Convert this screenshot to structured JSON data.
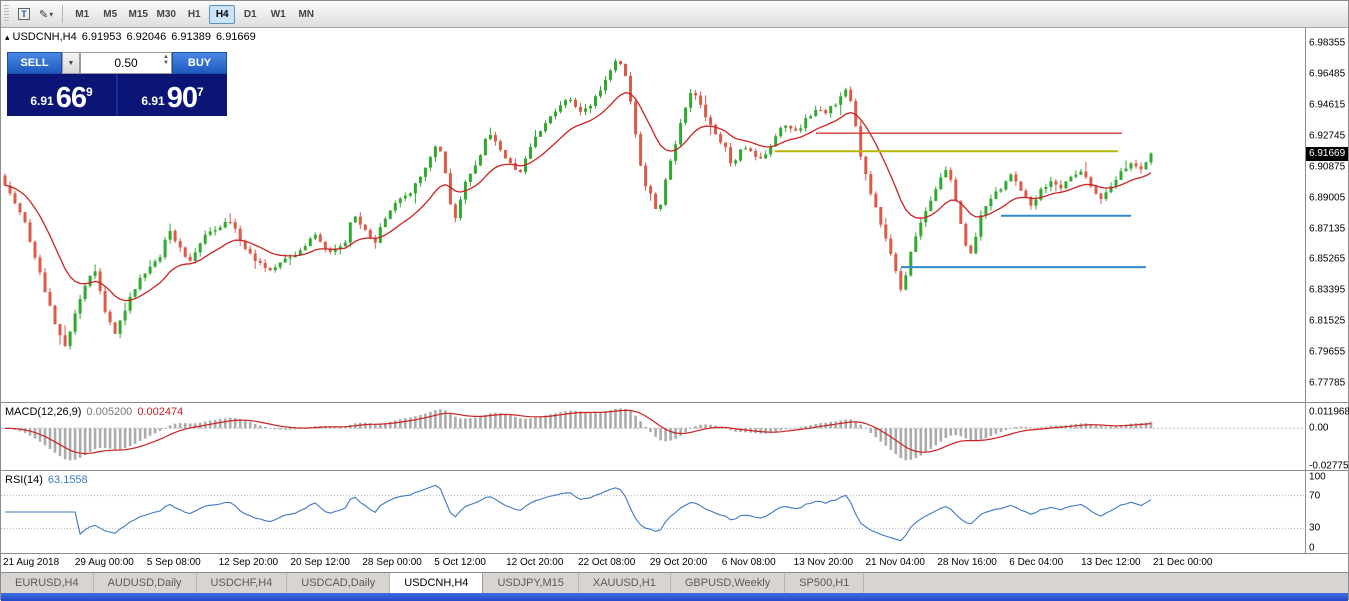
{
  "toolbar": {
    "window_glyph": "T",
    "tools_glyph": "✎",
    "dropdown_glyph": "▾",
    "timeframes": [
      {
        "label": "M1",
        "active": false
      },
      {
        "label": "M5",
        "active": false
      },
      {
        "label": "M15",
        "active": false
      },
      {
        "label": "M30",
        "active": false
      },
      {
        "label": "H1",
        "active": false
      },
      {
        "label": "H4",
        "active": true
      },
      {
        "label": "D1",
        "active": false
      },
      {
        "label": "W1",
        "active": false
      },
      {
        "label": "MN",
        "active": false
      }
    ]
  },
  "chart": {
    "header": {
      "marker": "▴",
      "symbol": "USDCNH,H4",
      "open": "6.91953",
      "high": "6.92046",
      "low": "6.91389",
      "close": "6.91669"
    },
    "current_price": "6.91669",
    "price_scale": [
      "6.98355",
      "6.96485",
      "6.94615",
      "6.92745",
      "6.90875",
      "6.89005",
      "6.87135",
      "6.85265",
      "6.83395",
      "6.81525",
      "6.79655",
      "6.77785"
    ]
  },
  "trade_panel": {
    "sell_label": "SELL",
    "buy_label": "BUY",
    "volume": "0.50",
    "drop_glyph": "▼",
    "spin_up": "▲",
    "spin_down": "▼",
    "sell_price": {
      "small": "6.91",
      "big": "66",
      "sup": "9"
    },
    "buy_price": {
      "small": "6.91",
      "big": "90",
      "sup": "7"
    }
  },
  "macd_panel": {
    "label": "MACD(12,26,9)",
    "value1": "0.005200",
    "value2": "0.002474",
    "scale": [
      "0.011968",
      "0.00",
      "-0.02775"
    ]
  },
  "rsi_panel": {
    "label": "RSI(14)",
    "value": "63.1558",
    "scale": [
      "100",
      "70",
      "30",
      "0"
    ]
  },
  "time_axis": [
    "21 Aug 2018",
    "29 Aug 00:00",
    "5 Sep 08:00",
    "12 Sep 20:00",
    "20 Sep 12:00",
    "28 Sep 00:00",
    "5 Oct 12:00",
    "12 Oct 20:00",
    "22 Oct 08:00",
    "29 Oct 20:00",
    "6 Nov 08:00",
    "13 Nov 20:00",
    "21 Nov 04:00",
    "28 Nov 16:00",
    "6 Dec 04:00",
    "13 Dec 12:00",
    "21 Dec 00:00"
  ],
  "tabs": [
    {
      "label": "EURUSD,H4",
      "active": false
    },
    {
      "label": "AUDUSD,Daily",
      "active": false
    },
    {
      "label": "USDCHF,H4",
      "active": false
    },
    {
      "label": "USDCAD,Daily",
      "active": false
    },
    {
      "label": "USDCNH,H4",
      "active": true
    },
    {
      "label": "USDJPY,M15",
      "active": false
    },
    {
      "label": "XAUUSD,H1",
      "active": false
    },
    {
      "label": "GBPUSD,Weekly",
      "active": false
    },
    {
      "label": "SP500,H1",
      "active": false
    }
  ],
  "chart_data": {
    "type": "candlestick",
    "symbol": "USDCNH",
    "timeframe": "H4",
    "title": "USDCNH,H4",
    "visible_range": {
      "start": "21 Aug 2018",
      "end": "21 Dec 2018"
    },
    "last_ohlc": {
      "open": 6.91953,
      "high": 6.92046,
      "low": 6.91389,
      "close": 6.91669
    },
    "y_axis": {
      "min": 6.7664,
      "max": 6.9926,
      "ticks": [
        6.98355,
        6.96485,
        6.94615,
        6.92745,
        6.90875,
        6.89005,
        6.87135,
        6.85265,
        6.83395,
        6.81525,
        6.79655,
        6.77785
      ]
    },
    "candle_count": 230,
    "up_color": "#2faa2f",
    "down_color": "#dd5a49",
    "last_close": 6.91669,
    "price_path": [
      [
        0.0,
        6.898
      ],
      [
        0.017,
        6.875
      ],
      [
        0.03,
        6.845
      ],
      [
        0.043,
        6.815
      ],
      [
        0.052,
        6.798
      ],
      [
        0.061,
        6.82
      ],
      [
        0.07,
        6.838
      ],
      [
        0.078,
        6.848
      ],
      [
        0.087,
        6.822
      ],
      [
        0.096,
        6.808
      ],
      [
        0.109,
        6.83
      ],
      [
        0.122,
        6.845
      ],
      [
        0.135,
        6.853
      ],
      [
        0.143,
        6.872
      ],
      [
        0.152,
        6.86
      ],
      [
        0.161,
        6.85
      ],
      [
        0.174,
        6.866
      ],
      [
        0.187,
        6.872
      ],
      [
        0.196,
        6.876
      ],
      [
        0.209,
        6.86
      ],
      [
        0.222,
        6.85
      ],
      [
        0.23,
        6.846
      ],
      [
        0.243,
        6.852
      ],
      [
        0.257,
        6.858
      ],
      [
        0.27,
        6.868
      ],
      [
        0.283,
        6.856
      ],
      [
        0.296,
        6.862
      ],
      [
        0.304,
        6.88
      ],
      [
        0.313,
        6.872
      ],
      [
        0.322,
        6.862
      ],
      [
        0.33,
        6.876
      ],
      [
        0.339,
        6.886
      ],
      [
        0.352,
        6.892
      ],
      [
        0.365,
        6.906
      ],
      [
        0.378,
        6.924
      ],
      [
        0.387,
        6.896
      ],
      [
        0.391,
        6.874
      ],
      [
        0.4,
        6.896
      ],
      [
        0.413,
        6.913
      ],
      [
        0.422,
        6.93
      ],
      [
        0.43,
        6.922
      ],
      [
        0.439,
        6.912
      ],
      [
        0.448,
        6.903
      ],
      [
        0.457,
        6.92
      ],
      [
        0.47,
        6.934
      ],
      [
        0.483,
        6.944
      ],
      [
        0.491,
        6.95
      ],
      [
        0.503,
        6.94
      ],
      [
        0.513,
        6.948
      ],
      [
        0.522,
        6.958
      ],
      [
        0.53,
        6.97
      ],
      [
        0.535,
        6.974
      ],
      [
        0.543,
        6.96
      ],
      [
        0.55,
        6.93
      ],
      [
        0.557,
        6.9
      ],
      [
        0.565,
        6.89
      ],
      [
        0.57,
        6.878
      ],
      [
        0.578,
        6.905
      ],
      [
        0.587,
        6.928
      ],
      [
        0.596,
        6.95
      ],
      [
        0.6,
        6.955
      ],
      [
        0.609,
        6.942
      ],
      [
        0.617,
        6.932
      ],
      [
        0.629,
        6.92
      ],
      [
        0.635,
        6.908
      ],
      [
        0.643,
        6.922
      ],
      [
        0.652,
        6.917
      ],
      [
        0.661,
        6.912
      ],
      [
        0.67,
        6.925
      ],
      [
        0.678,
        6.934
      ],
      [
        0.691,
        6.93
      ],
      [
        0.7,
        6.938
      ],
      [
        0.709,
        6.945
      ],
      [
        0.717,
        6.942
      ],
      [
        0.726,
        6.948
      ],
      [
        0.733,
        6.957
      ],
      [
        0.739,
        6.948
      ],
      [
        0.745,
        6.92
      ],
      [
        0.753,
        6.898
      ],
      [
        0.761,
        6.882
      ],
      [
        0.77,
        6.862
      ],
      [
        0.778,
        6.843
      ],
      [
        0.783,
        6.832
      ],
      [
        0.791,
        6.858
      ],
      [
        0.8,
        6.878
      ],
      [
        0.809,
        6.89
      ],
      [
        0.816,
        6.902
      ],
      [
        0.822,
        6.908
      ],
      [
        0.83,
        6.888
      ],
      [
        0.839,
        6.86
      ],
      [
        0.843,
        6.856
      ],
      [
        0.852,
        6.88
      ],
      [
        0.861,
        6.89
      ],
      [
        0.87,
        6.896
      ],
      [
        0.878,
        6.905
      ],
      [
        0.887,
        6.893
      ],
      [
        0.896,
        6.885
      ],
      [
        0.904,
        6.895
      ],
      [
        0.913,
        6.9
      ],
      [
        0.922,
        6.896
      ],
      [
        0.93,
        6.902
      ],
      [
        0.939,
        6.906
      ],
      [
        0.948,
        6.896
      ],
      [
        0.957,
        6.89
      ],
      [
        0.965,
        6.898
      ],
      [
        0.974,
        6.905
      ],
      [
        0.983,
        6.912
      ],
      [
        0.991,
        6.908
      ],
      [
        1.0,
        6.91669
      ]
    ],
    "ma": {
      "type": "ema",
      "period": 15,
      "color": "#cc2222"
    },
    "hlines": [
      {
        "price": 6.929,
        "x1": 0.624,
        "x2": 0.858,
        "color": "#d23b3b",
        "width": 1.4
      },
      {
        "price": 6.918,
        "x1": 0.593,
        "x2": 0.855,
        "color": "#b7b700",
        "width": 2
      },
      {
        "price": 6.879,
        "x1": 0.766,
        "x2": 0.865,
        "color": "#2e8bc9",
        "width": 2
      },
      {
        "price": 6.848,
        "x1": 0.689,
        "x2": 0.877,
        "color": "#2e8bc9",
        "width": 2
      }
    ],
    "macd": {
      "fast": 12,
      "slow": 26,
      "signal": 9,
      "hist_color": "#ababab",
      "line_color": "#cc2222",
      "vmax": 0.0185,
      "vmin": -0.0305,
      "current_macd": 0.0052,
      "current_signal": 0.002474
    },
    "rsi": {
      "period": 14,
      "color": "#3c78c8",
      "levels": [
        70,
        30
      ],
      "current": 63.1558
    }
  }
}
